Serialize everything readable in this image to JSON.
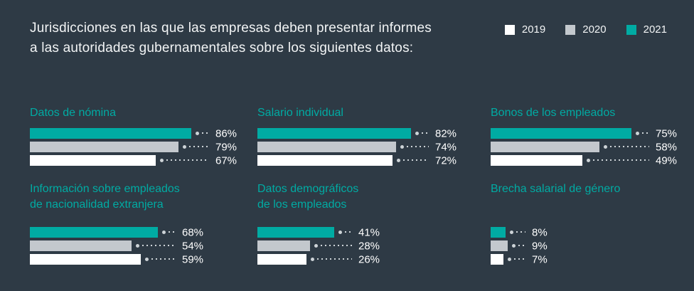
{
  "title": {
    "line1": "Jurisdicciones en las que las empresas deben presentar informes",
    "line2": "a las autoridades gubernamentales sobre los siguientes datos:"
  },
  "legend": [
    {
      "label": "2019",
      "color": "#ffffff"
    },
    {
      "label": "2020",
      "color": "#c3c8cd"
    },
    {
      "label": "2021",
      "color": "#00aba3"
    }
  ],
  "colors": {
    "background": "#2e3a45",
    "title_text": "#f2f4f5",
    "group_title": "#00aba3",
    "value_text": "#ffffff",
    "leader": "#cdd3d7"
  },
  "chart_data": {
    "type": "bar",
    "orientation": "horizontal",
    "unit": "%",
    "value_axis_max": 100,
    "grid": false,
    "legend_position": "top-right",
    "series_order_top_to_bottom": [
      "2021",
      "2020",
      "2019"
    ],
    "title": "Jurisdicciones en las que las empresas deben presentar informes a las autoridades gubernamentales sobre los siguientes datos:",
    "groups": [
      {
        "title": "Datos de nómina",
        "title_lines": [
          "Datos de nómina"
        ],
        "rows": [
          {
            "year": "2021",
            "value": 86,
            "label": "86%"
          },
          {
            "year": "2020",
            "value": 79,
            "label": "79%"
          },
          {
            "year": "2019",
            "value": 67,
            "label": "67%"
          }
        ]
      },
      {
        "title": "Salario individual",
        "title_lines": [
          "Salario individual"
        ],
        "rows": [
          {
            "year": "2021",
            "value": 82,
            "label": "82%"
          },
          {
            "year": "2020",
            "value": 74,
            "label": "74%"
          },
          {
            "year": "2019",
            "value": 72,
            "label": "72%"
          }
        ]
      },
      {
        "title": "Bonos de los empleados",
        "title_lines": [
          "Bonos de los empleados"
        ],
        "rows": [
          {
            "year": "2021",
            "value": 75,
            "label": "75%"
          },
          {
            "year": "2020",
            "value": 58,
            "label": "58%"
          },
          {
            "year": "2019",
            "value": 49,
            "label": "49%"
          }
        ]
      },
      {
        "title": "Información sobre empleados de nacionalidad extranjera",
        "title_lines": [
          "Información sobre empleados",
          "de nacionalidad extranjera"
        ],
        "rows": [
          {
            "year": "2021",
            "value": 68,
            "label": "68%"
          },
          {
            "year": "2020",
            "value": 54,
            "label": "54%"
          },
          {
            "year": "2019",
            "value": 59,
            "label": "59%"
          }
        ]
      },
      {
        "title": "Datos demográficos de los empleados",
        "title_lines": [
          "Datos demográficos",
          "de los empleados"
        ],
        "rows": [
          {
            "year": "2021",
            "value": 41,
            "label": "41%"
          },
          {
            "year": "2020",
            "value": 28,
            "label": "28%"
          },
          {
            "year": "2019",
            "value": 26,
            "label": "26%"
          }
        ]
      },
      {
        "title": "Brecha salarial de género",
        "title_lines": [
          "Brecha salarial de género"
        ],
        "rows": [
          {
            "year": "2021",
            "value": 8,
            "label": "8%"
          },
          {
            "year": "2020",
            "value": 9,
            "label": "9%"
          },
          {
            "year": "2019",
            "value": 7,
            "label": "7%"
          }
        ]
      }
    ]
  }
}
